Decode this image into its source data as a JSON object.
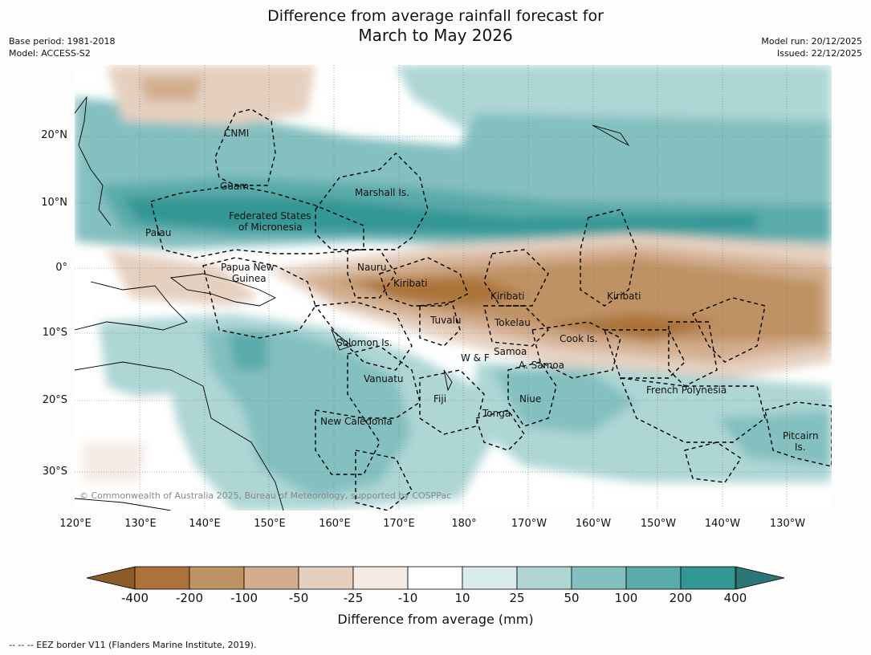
{
  "title_line1": "Difference from average rainfall forecast for",
  "title_line2": "March to May 2026",
  "meta_left": [
    "Base period: 1981-2018",
    "Model: ACCESS-S2"
  ],
  "meta_right": [
    "Model run: 20/12/2025",
    "Issued: 22/12/2025"
  ],
  "lat_labels": [
    "20°N",
    "10°N",
    "0°",
    "10°S",
    "20°S",
    "30°S"
  ],
  "lon_labels": [
    "120°E",
    "130°E",
    "140°E",
    "150°E",
    "160°E",
    "170°E",
    "180°",
    "170°W",
    "160°W",
    "150°W",
    "140°W",
    "130°W"
  ],
  "places": [
    {
      "name": "CNMI"
    },
    {
      "name": "Guam"
    },
    {
      "name": "Marshall Is."
    },
    {
      "name": "Federated States"
    },
    {
      "name": "of Micronesia"
    },
    {
      "name": "Palau"
    },
    {
      "name": "Papua New"
    },
    {
      "name": "Guinea"
    },
    {
      "name": "Nauru"
    },
    {
      "name": "Kiribati"
    },
    {
      "name": "Kiribati"
    },
    {
      "name": "Kiribati"
    },
    {
      "name": "Tuvalu"
    },
    {
      "name": "Tokelau"
    },
    {
      "name": "Solomon Is."
    },
    {
      "name": "Cook Is."
    },
    {
      "name": "W & F"
    },
    {
      "name": "Samoa"
    },
    {
      "name": "A. Samoa"
    },
    {
      "name": "Vanuatu"
    },
    {
      "name": "Fiji"
    },
    {
      "name": "Niue"
    },
    {
      "name": "French Polynesia"
    },
    {
      "name": "Tonga"
    },
    {
      "name": "New Caledonia"
    },
    {
      "name": "Pitcairn"
    },
    {
      "name": "Is."
    }
  ],
  "copyright": "© Commonwealth of Australia 2025, Bureau of Meteorology, supported by COSPPac",
  "colorbar": {
    "ticks": [
      "-400",
      "-200",
      "-100",
      "-50",
      "-25",
      "-10",
      "10",
      "25",
      "50",
      "100",
      "200",
      "400"
    ],
    "colors": [
      "#ab7339",
      "#bf9264",
      "#d2ae8e",
      "#e5d0c0",
      "#f4ebe5",
      "#ffffff",
      "#d7ebe9",
      "#add6d5",
      "#84c0c0",
      "#5aabaa",
      "#339795"
    ],
    "under_color": "#8e5a2a",
    "over_color": "#2e7575",
    "label": "Difference from average (mm)"
  },
  "footer": "--  --  -- EEZ border V11 (Flanders Marine Institute, 2019)."
}
